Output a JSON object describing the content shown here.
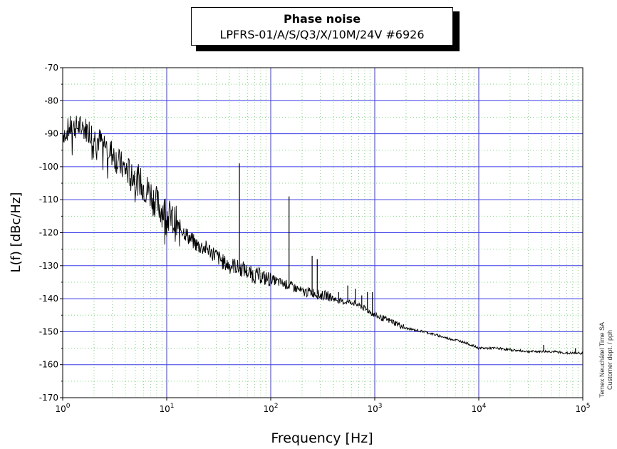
{
  "chart_data": {
    "type": "line",
    "title": "Phase noise",
    "subtitle": "LPFRS-01/A/S/Q3/X/10M/24V #6926",
    "xlabel": "Frequency [Hz]",
    "ylabel": "L(f) [dBc/Hz]",
    "x_scale": "log",
    "xlim": [
      1,
      100000
    ],
    "ylim": [
      -170,
      -70
    ],
    "x_ticks": [
      1,
      10,
      100,
      1000,
      10000,
      100000
    ],
    "x_tick_labels": [
      {
        "base": "10",
        "exp": "0"
      },
      {
        "base": "10",
        "exp": "1"
      },
      {
        "base": "10",
        "exp": "2"
      },
      {
        "base": "10",
        "exp": "3"
      },
      {
        "base": "10",
        "exp": "4"
      },
      {
        "base": "10",
        "exp": "5"
      }
    ],
    "y_ticks": [
      -70,
      -80,
      -90,
      -100,
      -110,
      -120,
      -130,
      -140,
      -150,
      -160,
      -170
    ],
    "y_tick_labels": [
      "-70",
      "-80",
      "-90",
      "-100",
      "-110",
      "-120",
      "-130",
      "-140",
      "-150",
      "-160",
      "-170"
    ],
    "grid": true,
    "line_color": "#000000",
    "major_grid_color": "#3a3ae6",
    "minor_grid_color": "#7fd67f",
    "series": [
      {
        "x": [
          1,
          1.2,
          1.5,
          1.8,
          2,
          2.5,
          3,
          3.5,
          4,
          5,
          6,
          7,
          8,
          9,
          10,
          11,
          12,
          14,
          17,
          20,
          25,
          30,
          35,
          40,
          45,
          50,
          55,
          60,
          70,
          80,
          90,
          100,
          120,
          150,
          180,
          200,
          250,
          300,
          350,
          400,
          500,
          600,
          700,
          800,
          900,
          1000,
          1200,
          1500,
          2000,
          3000,
          5000,
          7000,
          10000,
          15000,
          20000,
          30000,
          50000,
          70000,
          100000
        ],
        "y": [
          -90,
          -88,
          -88,
          -89,
          -91,
          -93,
          -96,
          -99,
          -101,
          -103,
          -106,
          -108,
          -111,
          -113,
          -114,
          -116,
          -117,
          -119,
          -122,
          -124,
          -125,
          -127,
          -129,
          -130,
          -130,
          -131,
          -131,
          -132,
          -133,
          -133,
          -134,
          -134,
          -135,
          -136,
          -137,
          -138,
          -138,
          -139,
          -139,
          -140,
          -141,
          -141,
          -142,
          -143,
          -144,
          -145,
          -146,
          -147,
          -149,
          -150,
          -152,
          -153,
          -155,
          -155,
          -155.5,
          -156,
          -156,
          -156.5,
          -156.5
        ]
      }
    ],
    "spurs": [
      {
        "x": 50,
        "y": -99
      },
      {
        "x": 150,
        "y": -109
      },
      {
        "x": 250,
        "y": -127
      },
      {
        "x": 280,
        "y": -128
      },
      {
        "x": 450,
        "y": -138
      },
      {
        "x": 550,
        "y": -136
      },
      {
        "x": 650,
        "y": -137
      },
      {
        "x": 750,
        "y": -139
      },
      {
        "x": 850,
        "y": -138
      },
      {
        "x": 950,
        "y": -138
      },
      {
        "x": 42000,
        "y": -154
      },
      {
        "x": 85000,
        "y": -155
      }
    ],
    "annotation": [
      "Temex Neuchâtel Time SA",
      "Customer dept. / pph"
    ]
  }
}
